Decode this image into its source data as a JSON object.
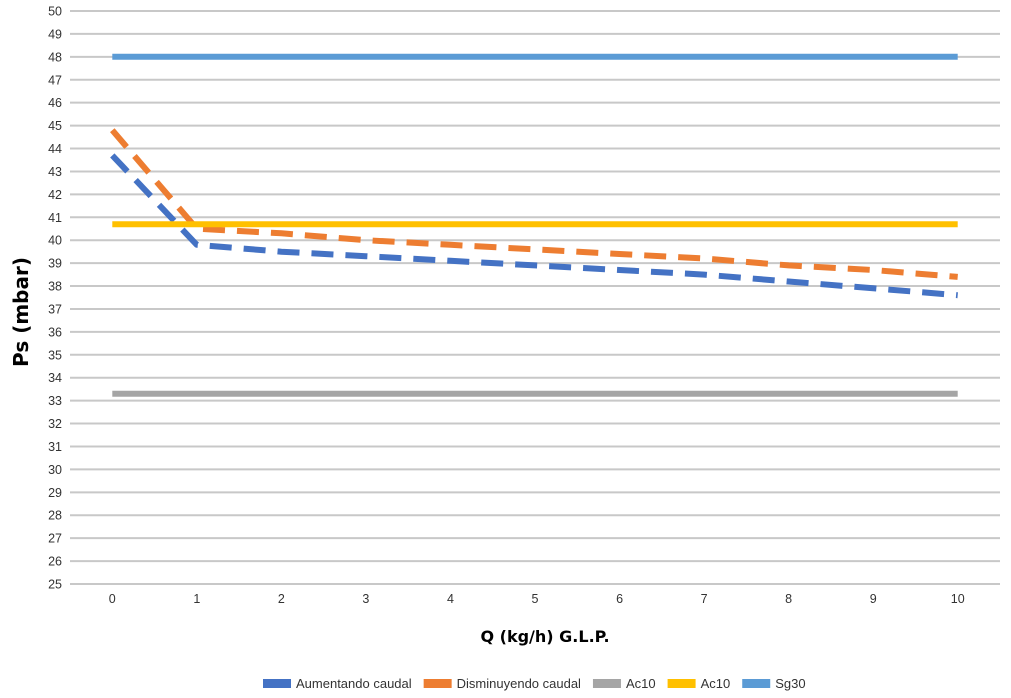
{
  "chart_data": {
    "type": "line",
    "xlabel": "Q (kg/h) G.L.P.",
    "ylabel": "Ps (mbar)",
    "categories": [
      "0",
      "1",
      "2",
      "3",
      "4",
      "5",
      "6",
      "7",
      "8",
      "9",
      "10"
    ],
    "y_ticks": [
      "25",
      "26",
      "27",
      "28",
      "29",
      "30",
      "31",
      "32",
      "33",
      "34",
      "35",
      "36",
      "37",
      "38",
      "39",
      "40",
      "41",
      "42",
      "43",
      "44",
      "45",
      "46",
      "47",
      "48",
      "49",
      "50"
    ],
    "ylim": [
      25,
      50
    ],
    "grid": true,
    "legend_position": "bottom",
    "series": [
      {
        "name": "Aumentando caudal",
        "color": "#4472C4",
        "style": "dashed",
        "values": [
          43.7,
          39.8,
          39.5,
          39.3,
          39.1,
          38.9,
          38.7,
          38.5,
          38.2,
          37.9,
          37.6
        ]
      },
      {
        "name": "Disminuyendo caudal",
        "color": "#ED7D31",
        "style": "dashed",
        "values": [
          44.8,
          40.5,
          40.3,
          40.0,
          39.8,
          39.6,
          39.4,
          39.2,
          38.9,
          38.7,
          38.4
        ]
      },
      {
        "name": "Ac10",
        "color": "#A5A5A5",
        "style": "solid",
        "values": [
          33.3,
          33.3,
          33.3,
          33.3,
          33.3,
          33.3,
          33.3,
          33.3,
          33.3,
          33.3,
          33.3
        ]
      },
      {
        "name": "Ac10",
        "color": "#FFC000",
        "style": "solid",
        "values": [
          40.7,
          40.7,
          40.7,
          40.7,
          40.7,
          40.7,
          40.7,
          40.7,
          40.7,
          40.7,
          40.7
        ]
      },
      {
        "name": "Sg30",
        "color": "#5B9BD5",
        "style": "solid",
        "values": [
          48,
          48,
          48,
          48,
          48,
          48,
          48,
          48,
          48,
          48,
          48
        ]
      }
    ]
  }
}
